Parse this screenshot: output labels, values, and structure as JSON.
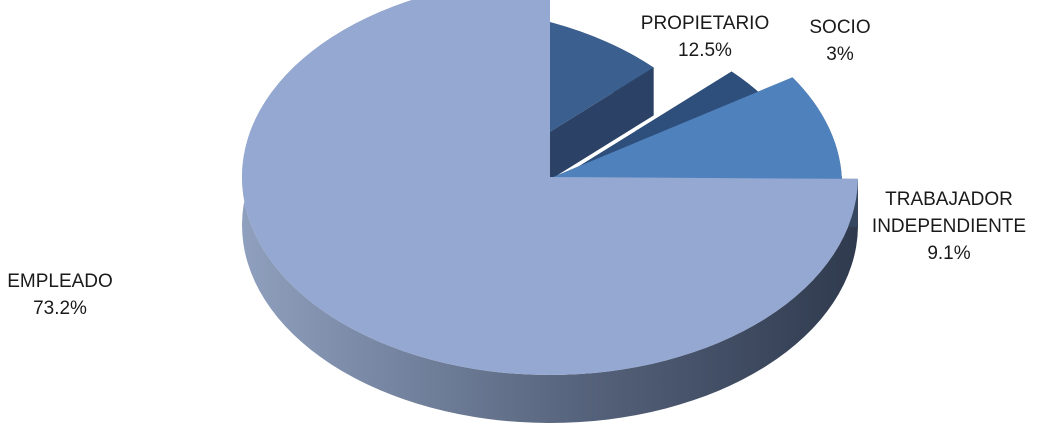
{
  "chart_data": {
    "type": "pie",
    "style": "3d-exploded",
    "slices": [
      {
        "label": "EMPLEADO",
        "value": 73.2,
        "value_label": "73.2%",
        "color": "#94A8D2"
      },
      {
        "label": "PROPIETARIO",
        "value": 12.5,
        "value_label": "12.5%",
        "color": "#3B5F8E"
      },
      {
        "label": "SOCIO",
        "value": 3,
        "value_label": "3%",
        "color": "#2E4F7C"
      },
      {
        "label": "TRABAJADOR INDEPENDIENTE",
        "value": 9.1,
        "value_label": "9.1%",
        "color": "#4F81BD"
      }
    ],
    "legend": "none",
    "labels": "outside"
  }
}
